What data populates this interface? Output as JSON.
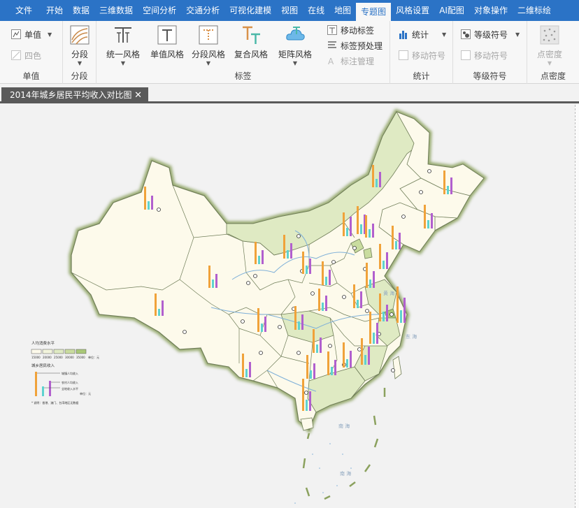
{
  "menu": {
    "tabs": [
      {
        "label": "文件"
      },
      {
        "label": "开始"
      },
      {
        "label": "数据"
      },
      {
        "label": "三维数据"
      },
      {
        "label": "空间分析"
      },
      {
        "label": "交通分析"
      },
      {
        "label": "可视化建模"
      },
      {
        "label": "视图"
      },
      {
        "label": "在线"
      },
      {
        "label": "地图"
      },
      {
        "label": "专题图"
      },
      {
        "label": "风格设置"
      },
      {
        "label": "AI配图"
      },
      {
        "label": "对象操作"
      },
      {
        "label": "二维标绘"
      }
    ],
    "active_index": 10
  },
  "ribbon": {
    "danzhi": {
      "btn1": "单值",
      "btn2": "四色",
      "label": "单值"
    },
    "fenduan": {
      "btn": "分段",
      "label": "分段"
    },
    "biaoqian": {
      "btn_uniform": "统一风格",
      "btn_unique": "单值风格",
      "btn_range": "分段风格",
      "btn_composite": "复合风格",
      "btn_matrix": "矩阵风格",
      "btn_move": "移动标签",
      "btn_preprocess": "标签预处理",
      "btn_annotation": "标注管理",
      "label": "标签"
    },
    "tongji": {
      "btn1": "统计",
      "btn2": "移动符号",
      "label": "统计"
    },
    "dengji": {
      "btn1": "等级符号",
      "btn2": "移动符号",
      "label": "等级符号"
    },
    "midu": {
      "btn": "点密度",
      "label": "点密度"
    }
  },
  "document": {
    "tab_title": "2014年城乡居民平均收入对比图"
  },
  "legend": {
    "title1": "人均消费水平",
    "classes": [
      "15000",
      "20000",
      "25000",
      "30000",
      "35000"
    ],
    "unit": "单位：元",
    "title2": "城乡居民收入",
    "items": [
      "城镇人均收入",
      "农村人均收入",
      "全地收入水平"
    ],
    "unit2": "单位：元",
    "note": "* 说明：香港、澳门、台湾地区无数据",
    "class_colors": [
      "#fdfaeb",
      "#f2f4dc",
      "#dfeac3",
      "#c9dc9f",
      "#a9c878"
    ],
    "bar_colors": [
      "#f0a23a",
      "#5ed3cf",
      "#b15fce"
    ]
  },
  "map_labels": {
    "sea_east": "东 海",
    "sea_yellow": "黄 海",
    "sea_south": "南 海",
    "sea_south2": "南 海"
  },
  "colors": {
    "accent": "#2b73c6",
    "doc_tab": "#5a5a5a",
    "land": "#fdfaeb",
    "land_green": "#dfeac3",
    "border_glow": "#8ba15e"
  }
}
